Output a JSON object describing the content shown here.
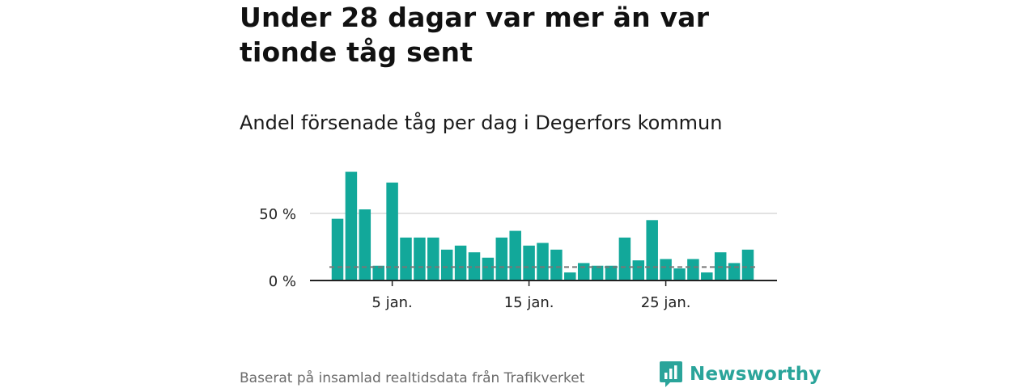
{
  "header": {
    "title": "Under 28 dagar var mer än var tionde tåg sent",
    "subtitle": "Andel försenade tåg per dag i Degerfors kommun"
  },
  "footer": {
    "source": "Baserat på insamlad realtidsdata från Trafikverket",
    "brand": "Newsworthy"
  },
  "colors": {
    "bar": "#12a89a",
    "reference_line": "#777777",
    "grid": "#d9d9d9",
    "axis": "#222222",
    "brand": "#2aa49a"
  },
  "chart_data": {
    "type": "bar",
    "title": "Andel försenade tåg per dag i Degerfors kommun",
    "xlabel": "",
    "ylabel": "",
    "x": [
      1,
      2,
      3,
      4,
      5,
      6,
      7,
      8,
      9,
      10,
      11,
      12,
      13,
      14,
      15,
      16,
      17,
      18,
      19,
      20,
      21,
      22,
      23,
      24,
      25,
      26,
      27,
      28,
      29,
      30,
      31
    ],
    "values": [
      46,
      81,
      53,
      11,
      73,
      32,
      32,
      32,
      23,
      26,
      21,
      17,
      32,
      37,
      26,
      28,
      23,
      6,
      13,
      11,
      11,
      32,
      15,
      45,
      16,
      9,
      16,
      6,
      21,
      13,
      23
    ],
    "reference_value": 10,
    "ylim": [
      0,
      85
    ],
    "y_ticks": [
      0,
      50
    ],
    "y_tick_labels": [
      "0 %",
      "50 %"
    ],
    "x_ticks": [
      5,
      15,
      25
    ],
    "x_tick_labels": [
      "5 jan.",
      "15 jan.",
      "25 jan."
    ],
    "grid": true,
    "legend": "none"
  }
}
